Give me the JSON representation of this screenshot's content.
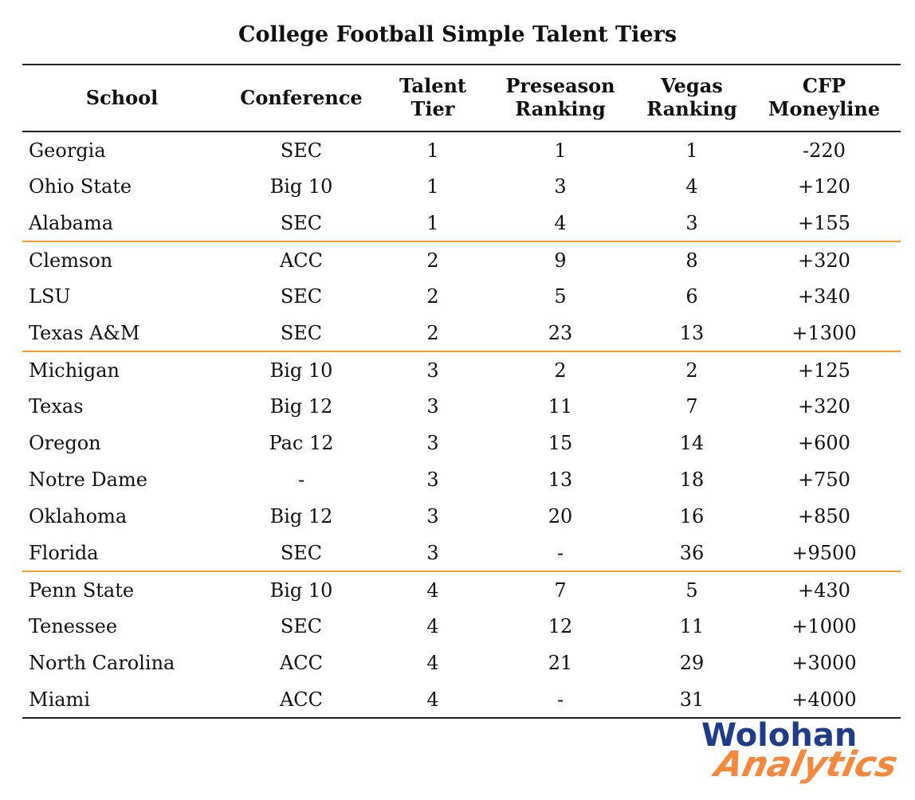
{
  "chart_data": {
    "type": "table",
    "title": "College Football Simple Talent Tiers",
    "columns": [
      {
        "key": "school",
        "line1": "School",
        "line2": ""
      },
      {
        "key": "conference",
        "line1": "Conference",
        "line2": ""
      },
      {
        "key": "tier",
        "line1": "Talent",
        "line2": "Tier"
      },
      {
        "key": "preseason",
        "line1": "Preseason",
        "line2": "Ranking"
      },
      {
        "key": "vegas",
        "line1": "Vegas",
        "line2": "Ranking"
      },
      {
        "key": "moneyline",
        "line1": "CFP",
        "line2": "Moneyline"
      }
    ],
    "rows": [
      {
        "school": "Georgia",
        "conference": "SEC",
        "tier": "1",
        "preseason": "1",
        "vegas": "1",
        "moneyline": "-220"
      },
      {
        "school": "Ohio State",
        "conference": "Big 10",
        "tier": "1",
        "preseason": "3",
        "vegas": "4",
        "moneyline": "+120"
      },
      {
        "school": "Alabama",
        "conference": "SEC",
        "tier": "1",
        "preseason": "4",
        "vegas": "3",
        "moneyline": "+155"
      },
      {
        "school": "Clemson",
        "conference": "ACC",
        "tier": "2",
        "preseason": "9",
        "vegas": "8",
        "moneyline": "+320"
      },
      {
        "school": "LSU",
        "conference": "SEC",
        "tier": "2",
        "preseason": "5",
        "vegas": "6",
        "moneyline": "+340"
      },
      {
        "school": "Texas A&M",
        "conference": "SEC",
        "tier": "2",
        "preseason": "23",
        "vegas": "13",
        "moneyline": "+1300"
      },
      {
        "school": "Michigan",
        "conference": "Big 10",
        "tier": "3",
        "preseason": "2",
        "vegas": "2",
        "moneyline": "+125"
      },
      {
        "school": "Texas",
        "conference": "Big 12",
        "tier": "3",
        "preseason": "11",
        "vegas": "7",
        "moneyline": "+320"
      },
      {
        "school": "Oregon",
        "conference": "Pac 12",
        "tier": "3",
        "preseason": "15",
        "vegas": "14",
        "moneyline": "+600"
      },
      {
        "school": "Notre Dame",
        "conference": "-",
        "tier": "3",
        "preseason": "13",
        "vegas": "18",
        "moneyline": "+750"
      },
      {
        "school": "Oklahoma",
        "conference": "Big 12",
        "tier": "3",
        "preseason": "20",
        "vegas": "16",
        "moneyline": "+850"
      },
      {
        "school": "Florida",
        "conference": "SEC",
        "tier": "3",
        "preseason": "-",
        "vegas": "36",
        "moneyline": "+9500"
      },
      {
        "school": "Penn State",
        "conference": "Big 10",
        "tier": "4",
        "preseason": "7",
        "vegas": "5",
        "moneyline": "+430"
      },
      {
        "school": "Tenessee",
        "conference": "SEC",
        "tier": "4",
        "preseason": "12",
        "vegas": "11",
        "moneyline": "+1000"
      },
      {
        "school": "North Carolina",
        "conference": "ACC",
        "tier": "4",
        "preseason": "21",
        "vegas": "29",
        "moneyline": "+3000"
      },
      {
        "school": "Miami",
        "conference": "ACC",
        "tier": "4",
        "preseason": "-",
        "vegas": "31",
        "moneyline": "+4000"
      }
    ]
  },
  "logo": {
    "line1": "Wolohan",
    "line2": "Analytics",
    "color_primary": "#1f3c88",
    "color_secondary": "#f5883a"
  },
  "colors": {
    "tier_divider": "#f59a2b",
    "rule": "#222222"
  }
}
